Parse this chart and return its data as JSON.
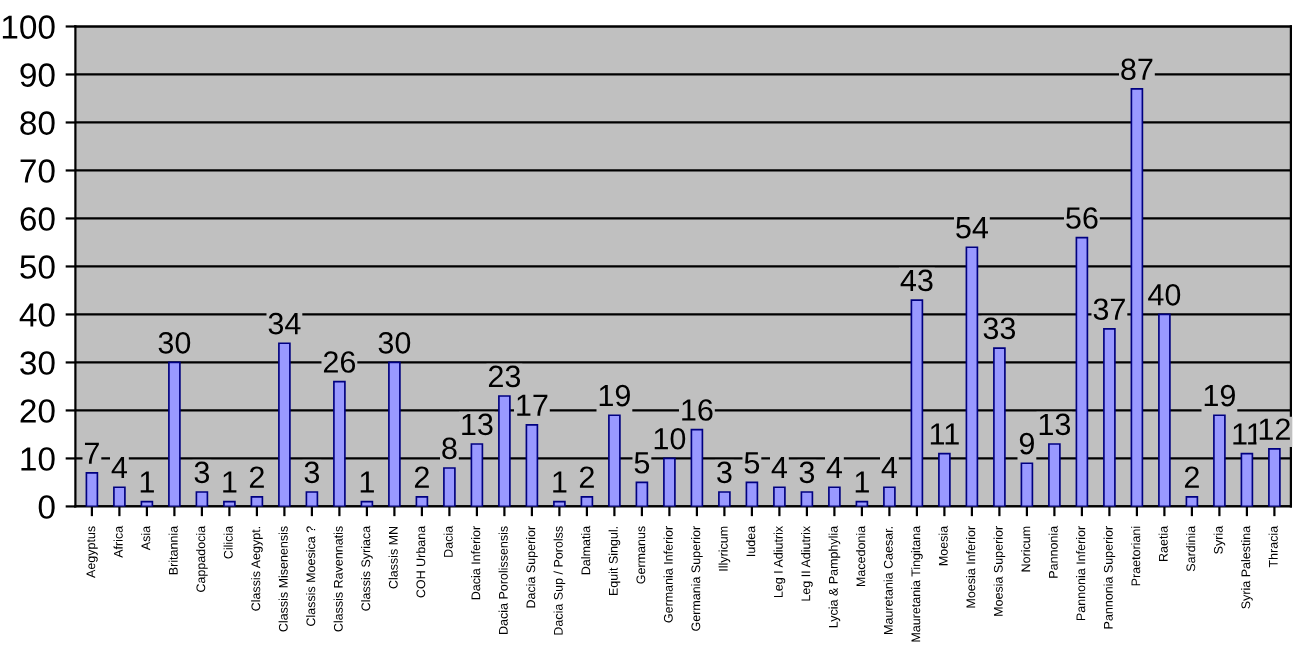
{
  "chart_data": {
    "type": "bar",
    "categories": [
      "Aegyptus",
      "Africa",
      "Asia",
      "Britannia",
      "Cappadocia",
      "Cilicia",
      "Classis Aegypt.",
      "Classis Misenensis",
      "Classis Moesica ?",
      "Classis Ravennatis",
      "Classis Syriaca",
      "Classis MN",
      "COH Urbana",
      "Dacia",
      "Dacia Inferior",
      "Dacia Porolissensis",
      "Dacia Superior",
      "Dacia Sup / Porolss",
      "Dalmatia",
      "Equit Singul.",
      "Germanus",
      "Germania Inferior",
      "Germania Superior",
      "Illyricum",
      "Iudea",
      "Leg I Adiutrix",
      "Leg II Adiutrix",
      "Lycia & Pamphylia",
      "Macedonia",
      "Mauretania Caesar.",
      "Mauretania Tingitana",
      "Moesia",
      "Moesia Inferior",
      "Moesia Superior",
      "Noricum",
      "Pannonia",
      "Pannonia Inferior",
      "Pannonia Superior",
      "Praetoriani",
      "Raetia",
      "Sardinia",
      "Syria",
      "Syria Palestina",
      "Thracia"
    ],
    "values": [
      7,
      4,
      1,
      30,
      3,
      1,
      2,
      34,
      3,
      26,
      1,
      30,
      2,
      8,
      13,
      23,
      17,
      1,
      2,
      19,
      5,
      10,
      16,
      3,
      5,
      4,
      3,
      4,
      1,
      4,
      43,
      11,
      54,
      33,
      9,
      13,
      56,
      37,
      87,
      40,
      2,
      19,
      11,
      12
    ],
    "color": "#9999ff",
    "ylim": [
      0,
      100
    ],
    "yticks": [
      0,
      10,
      20,
      30,
      40,
      50,
      60,
      70,
      80,
      90,
      100
    ],
    "grid": "y",
    "data_labels": true
  }
}
